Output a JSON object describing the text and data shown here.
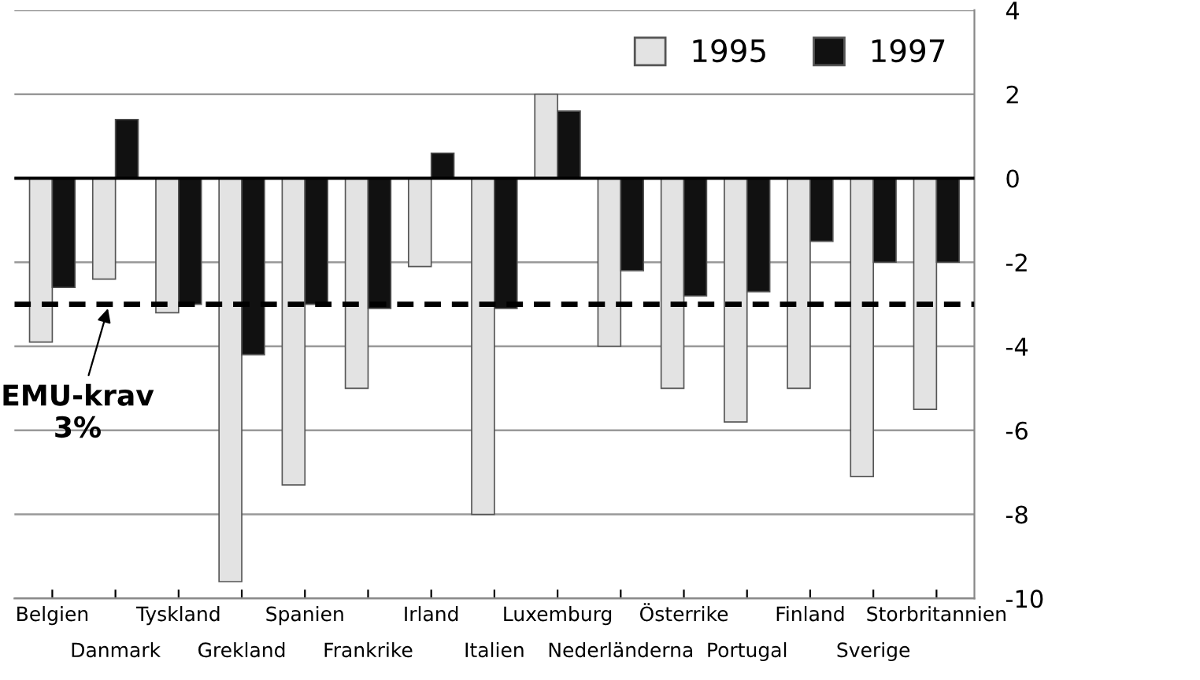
{
  "chart_data": {
    "type": "bar",
    "categories": [
      "Belgien",
      "Danmark",
      "Tyskland",
      "Grekland",
      "Spanien",
      "Frankrike",
      "Irland",
      "Italien",
      "Luxemburg",
      "Nederländerna",
      "Österrike",
      "Portugal",
      "Finland",
      "Sverige",
      "Storbritannien"
    ],
    "series": [
      {
        "name": "1995",
        "color": "#e3e3e3",
        "values": [
          -3.9,
          -2.4,
          -3.2,
          -9.6,
          -7.3,
          -5.0,
          -2.1,
          -8.0,
          2.0,
          -4.0,
          -5.0,
          -5.8,
          -5.0,
          -7.1,
          -5.5
        ]
      },
      {
        "name": "1997",
        "color": "#111111",
        "values": [
          -2.6,
          1.4,
          -3.0,
          -4.2,
          -3.0,
          -3.1,
          0.6,
          -3.1,
          1.6,
          -2.2,
          -2.8,
          -2.7,
          -1.5,
          -2.0,
          -2.0
        ]
      }
    ],
    "ylim": [
      -10,
      4
    ],
    "yticks": [
      -10,
      -8,
      -6,
      -4,
      -2,
      0,
      2,
      4
    ],
    "grid": "y",
    "legend": "top right",
    "ref_lines": [
      {
        "axis": "y",
        "value": -3,
        "label": "EMU-krav\n3%",
        "color": "#000000",
        "line_style": "dashed"
      }
    ]
  }
}
